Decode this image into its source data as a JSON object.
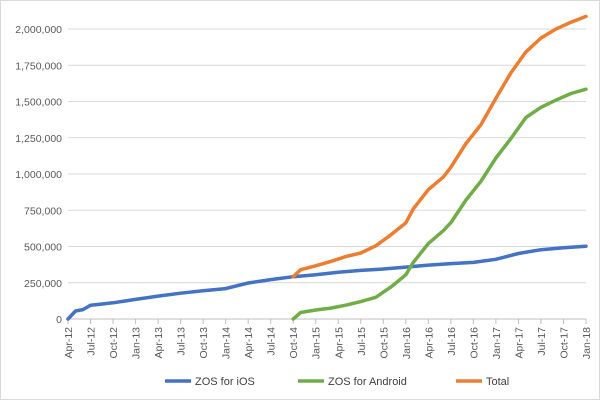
{
  "chart_data": {
    "type": "line",
    "title": "",
    "xlabel": "",
    "ylabel": "",
    "ylim": [
      0,
      2000000
    ],
    "y_ticks": [
      "0",
      "250,000",
      "500,000",
      "750,000",
      "1,000,000",
      "1,250,000",
      "1,500,000",
      "1,750,000",
      "2,000,000"
    ],
    "y_tick_values": [
      0,
      250000,
      500000,
      750000,
      1000000,
      1250000,
      1500000,
      1750000,
      2000000
    ],
    "x_ticks": [
      "Apr-12",
      "Jul-12",
      "Oct-12",
      "Jan-13",
      "Apr-13",
      "Jul-13",
      "Oct-13",
      "Jan-14",
      "Apr-14",
      "Jul-14",
      "Oct-14",
      "Jan-15",
      "Apr-15",
      "Jul-15",
      "Oct-15",
      "Jan-16",
      "Apr-16",
      "Jul-16",
      "Oct-16",
      "Jan-17",
      "Apr-17",
      "Jul-17",
      "Oct-17",
      "Jan-18"
    ],
    "grid": "horizontal",
    "legend": "bottom",
    "series": [
      {
        "name": "ZOS for iOS",
        "color": "#4472C4",
        "points": [
          [
            "2012-04",
            0
          ],
          [
            "2012-05",
            55000
          ],
          [
            "2012-06",
            65000
          ],
          [
            "2012-07",
            95000
          ],
          [
            "2012-08",
            100000
          ],
          [
            "2012-10",
            112000
          ],
          [
            "2013-01",
            135000
          ],
          [
            "2013-04",
            158000
          ],
          [
            "2013-07",
            178000
          ],
          [
            "2013-10",
            195000
          ],
          [
            "2014-01",
            210000
          ],
          [
            "2014-04",
            248000
          ],
          [
            "2014-07",
            272000
          ],
          [
            "2014-10",
            292000
          ],
          [
            "2015-01",
            305000
          ],
          [
            "2015-04",
            322000
          ],
          [
            "2015-07",
            335000
          ],
          [
            "2015-10",
            345000
          ],
          [
            "2016-01",
            358000
          ],
          [
            "2016-04",
            372000
          ],
          [
            "2016-07",
            382000
          ],
          [
            "2016-10",
            390000
          ],
          [
            "2017-01",
            412000
          ],
          [
            "2017-04",
            452000
          ],
          [
            "2017-07",
            478000
          ],
          [
            "2017-10",
            492000
          ],
          [
            "2018-01",
            502000
          ]
        ]
      },
      {
        "name": "ZOS for Android",
        "color": "#70AD47",
        "points": [
          [
            "2014-10",
            0
          ],
          [
            "2014-11",
            45000
          ],
          [
            "2015-01",
            62000
          ],
          [
            "2015-03",
            75000
          ],
          [
            "2015-05",
            95000
          ],
          [
            "2015-07",
            120000
          ],
          [
            "2015-09",
            150000
          ],
          [
            "2015-11",
            220000
          ],
          [
            "2016-01",
            305000
          ],
          [
            "2016-02",
            390000
          ],
          [
            "2016-04",
            520000
          ],
          [
            "2016-06",
            610000
          ],
          [
            "2016-07",
            665000
          ],
          [
            "2016-09",
            820000
          ],
          [
            "2016-11",
            950000
          ],
          [
            "2017-01",
            1110000
          ],
          [
            "2017-03",
            1245000
          ],
          [
            "2017-05",
            1390000
          ],
          [
            "2017-07",
            1460000
          ],
          [
            "2017-09",
            1510000
          ],
          [
            "2017-11",
            1555000
          ],
          [
            "2018-01",
            1585000
          ]
        ]
      },
      {
        "name": "Total",
        "color": "#ED7D31",
        "points": [
          [
            "2014-10",
            292000
          ],
          [
            "2014-11",
            340000
          ],
          [
            "2015-01",
            367000
          ],
          [
            "2015-03",
            397000
          ],
          [
            "2015-05",
            430000
          ],
          [
            "2015-07",
            455000
          ],
          [
            "2015-09",
            505000
          ],
          [
            "2015-11",
            580000
          ],
          [
            "2016-01",
            663000
          ],
          [
            "2016-02",
            760000
          ],
          [
            "2016-04",
            892000
          ],
          [
            "2016-06",
            980000
          ],
          [
            "2016-07",
            1047000
          ],
          [
            "2016-09",
            1210000
          ],
          [
            "2016-11",
            1340000
          ],
          [
            "2017-01",
            1522000
          ],
          [
            "2017-03",
            1697000
          ],
          [
            "2017-05",
            1842000
          ],
          [
            "2017-07",
            1938000
          ],
          [
            "2017-09",
            2000000
          ],
          [
            "2017-11",
            2047000
          ],
          [
            "2018-01",
            2087000
          ]
        ]
      }
    ]
  }
}
